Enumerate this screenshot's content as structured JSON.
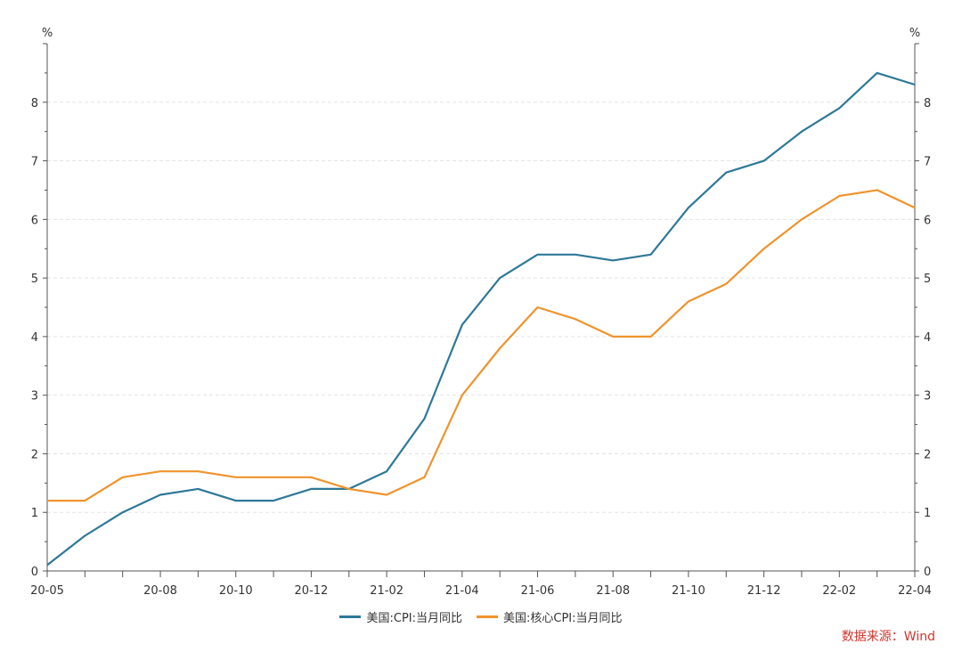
{
  "chart_data": {
    "type": "line",
    "y_unit_left": "%",
    "y_unit_right": "%",
    "ylim": [
      0,
      9
    ],
    "y_ticks": [
      0,
      1,
      2,
      3,
      4,
      5,
      6,
      7,
      8
    ],
    "x": [
      "20-05",
      "20-06",
      "20-07",
      "20-08",
      "20-09",
      "20-10",
      "20-11",
      "20-12",
      "21-01",
      "21-02",
      "21-03",
      "21-04",
      "21-05",
      "21-06",
      "21-07",
      "21-08",
      "21-09",
      "21-10",
      "21-11",
      "21-12",
      "22-01",
      "22-02",
      "22-03",
      "22-04"
    ],
    "x_tick_labels": [
      "20-05",
      "",
      "",
      "20-08",
      "",
      "20-10",
      "",
      "20-12",
      "",
      "21-02",
      "",
      "21-04",
      "",
      "21-06",
      "",
      "21-08",
      "",
      "21-10",
      "",
      "21-12",
      "",
      "22-02",
      "",
      "22-04"
    ],
    "series": [
      {
        "name": "美国:CPI:当月同比",
        "color": "#2e7898",
        "values": [
          0.1,
          0.6,
          1.0,
          1.3,
          1.4,
          1.2,
          1.2,
          1.4,
          1.4,
          1.7,
          2.6,
          4.2,
          5.0,
          5.4,
          5.4,
          5.3,
          5.4,
          6.2,
          6.8,
          7.0,
          7.5,
          7.9,
          8.5,
          8.3
        ]
      },
      {
        "name": "美国:核心CPI:当月同比",
        "color": "#f0932d",
        "values": [
          1.2,
          1.2,
          1.6,
          1.7,
          1.7,
          1.6,
          1.6,
          1.6,
          1.4,
          1.3,
          1.6,
          3.0,
          3.8,
          4.5,
          4.3,
          4.0,
          4.0,
          4.6,
          4.9,
          5.5,
          6.0,
          6.4,
          6.5,
          6.2
        ]
      }
    ],
    "grid": "horizontal dashed",
    "legend_position": "bottom-center"
  },
  "source": "数据来源：Wind"
}
